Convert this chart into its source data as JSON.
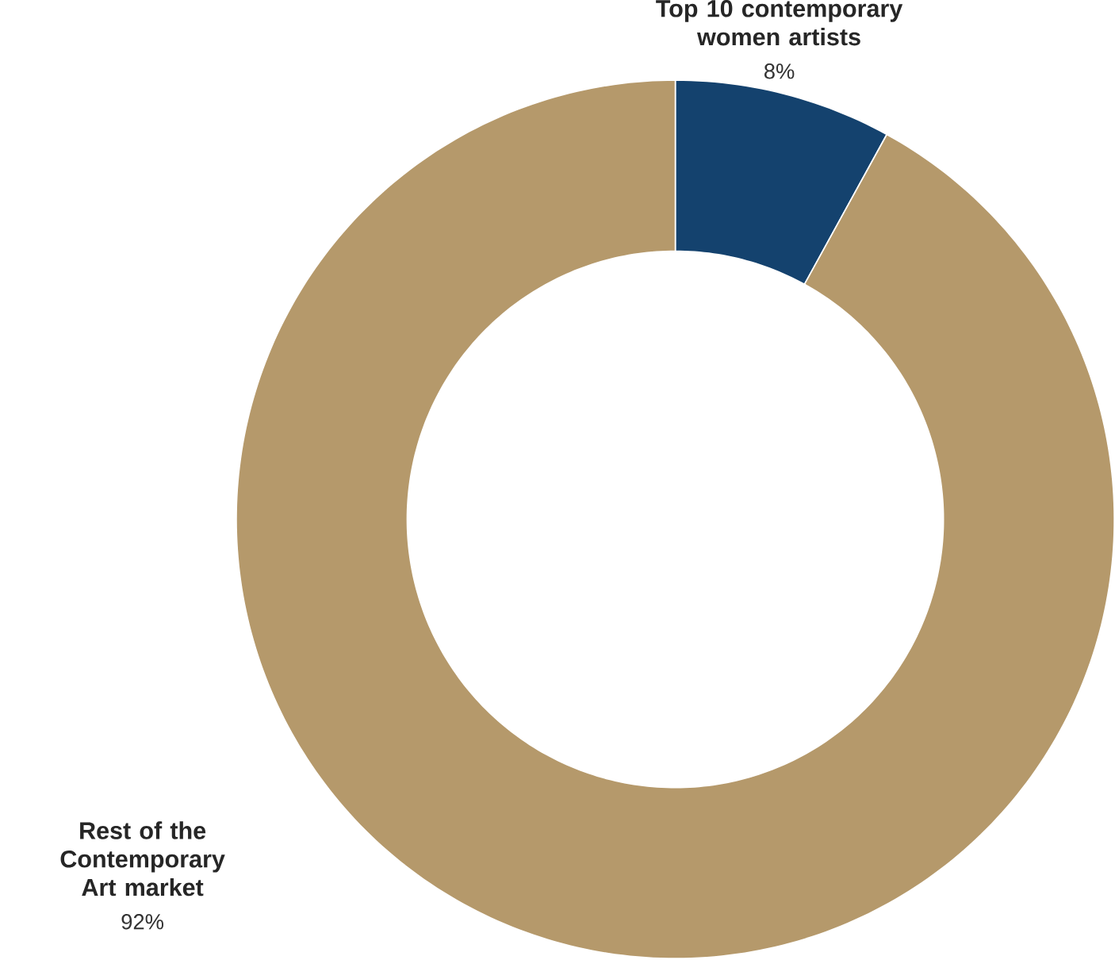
{
  "chart_data": {
    "type": "donut",
    "categories": [
      "**Top 10 contemporary women artists**",
      "**Rest of the Contemporary Art market**"
    ],
    "values": [
      8,
      92
    ],
    "colors": [
      "#14426e",
      "#b5996b"
    ],
    "value_labels": [
      "8%",
      "92%"
    ]
  }
}
